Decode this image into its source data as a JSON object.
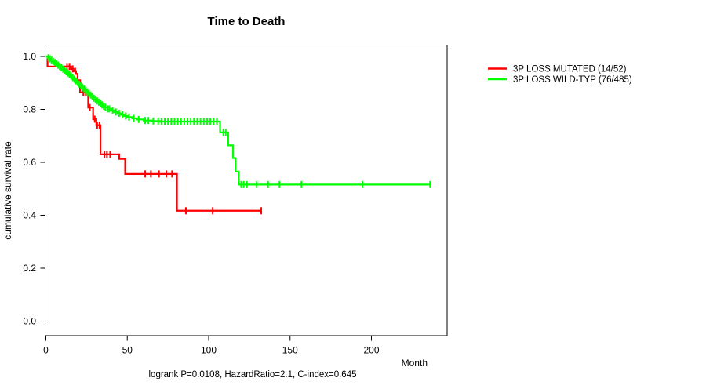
{
  "title": "Time to Death",
  "caption": "logrank P=0.0108, HazardRatio=2.1, C-index=0.645",
  "axes": {
    "x_label": "Month",
    "y_label": "cumulative survival rate",
    "x_ticks": [
      0,
      50,
      100,
      150,
      200
    ],
    "y_ticks": [
      "0.0",
      "0.2",
      "0.4",
      "0.6",
      "0.8",
      "1.0"
    ]
  },
  "chart_data": {
    "type": "line",
    "subtype": "kaplan-meier-step-curves",
    "title": "Time to Death",
    "xlabel": "Month",
    "ylabel": "cumulative survival rate",
    "xlim": [
      0,
      235
    ],
    "ylim": [
      0.0,
      1.0
    ],
    "grid": false,
    "legend_position": "right-outside",
    "annotation": "logrank P=0.0108, HazardRatio=2.1, C-index=0.645",
    "series": [
      {
        "name": "3P LOSS MUTATED (14/52)",
        "color": "#ff0000",
        "events": 14,
        "n": 52,
        "steps": [
          [
            0,
            1.0
          ],
          [
            1,
            0.962
          ],
          [
            15.5,
            0.953
          ],
          [
            17,
            0.944
          ],
          [
            18.5,
            0.934
          ],
          [
            19.5,
            0.91
          ],
          [
            21,
            0.864
          ],
          [
            26,
            0.807
          ],
          [
            29,
            0.763
          ],
          [
            31,
            0.74
          ],
          [
            33.5,
            0.63
          ],
          [
            45,
            0.613
          ],
          [
            48.7,
            0.556
          ],
          [
            80.5,
            0.417
          ],
          [
            132.3,
            0.417
          ]
        ],
        "censor_months": [
          13,
          14.5,
          16.5,
          18,
          23,
          24.5,
          27,
          30,
          31.5,
          33,
          36,
          37.5,
          39.5,
          61,
          64.5,
          69.5,
          74,
          77.5,
          86,
          102.5,
          132.3
        ]
      },
      {
        "name": "3P LOSS WILD-TYP (76/485)",
        "color": "#00ff00",
        "events": 76,
        "n": 485,
        "steps": [
          [
            0,
            1.0
          ],
          [
            1,
            0.995
          ],
          [
            2,
            0.991
          ],
          [
            3,
            0.986
          ],
          [
            4,
            0.981
          ],
          [
            5,
            0.977
          ],
          [
            6,
            0.972
          ],
          [
            7,
            0.967
          ],
          [
            8,
            0.962
          ],
          [
            9,
            0.957
          ],
          [
            10,
            0.952
          ],
          [
            11,
            0.947
          ],
          [
            12,
            0.942
          ],
          [
            13,
            0.937
          ],
          [
            14,
            0.932
          ],
          [
            15,
            0.926
          ],
          [
            16,
            0.92
          ],
          [
            17,
            0.914
          ],
          [
            18,
            0.908
          ],
          [
            19,
            0.902
          ],
          [
            20,
            0.896
          ],
          [
            21,
            0.89
          ],
          [
            22,
            0.884
          ],
          [
            23,
            0.878
          ],
          [
            24,
            0.872
          ],
          [
            25,
            0.866
          ],
          [
            26,
            0.86
          ],
          [
            27,
            0.854
          ],
          [
            28,
            0.848
          ],
          [
            29,
            0.842
          ],
          [
            30,
            0.837
          ],
          [
            31,
            0.832
          ],
          [
            32,
            0.827
          ],
          [
            33,
            0.822
          ],
          [
            34,
            0.817
          ],
          [
            35,
            0.812
          ],
          [
            36,
            0.808
          ],
          [
            38,
            0.802
          ],
          [
            40,
            0.796
          ],
          [
            42,
            0.79
          ],
          [
            44,
            0.785
          ],
          [
            46,
            0.78
          ],
          [
            48,
            0.775
          ],
          [
            50,
            0.771
          ],
          [
            53,
            0.766
          ],
          [
            56,
            0.762
          ],
          [
            60,
            0.758
          ],
          [
            65,
            0.756
          ],
          [
            70,
            0.754
          ],
          [
            107,
            0.713
          ],
          [
            112,
            0.664
          ],
          [
            115,
            0.616
          ],
          [
            116.5,
            0.565
          ],
          [
            118.5,
            0.516
          ],
          [
            236,
            0.516
          ]
        ],
        "censor_months": [
          1.5,
          2.5,
          3.5,
          4.5,
          5.5,
          6.5,
          7.5,
          8.5,
          9.5,
          10.5,
          11.5,
          12.5,
          13.5,
          14.5,
          15.5,
          16.5,
          17.5,
          18.5,
          19.5,
          20.5,
          21.5,
          22.5,
          23.5,
          24.5,
          25.5,
          26.5,
          27.5,
          28.5,
          29.5,
          30.5,
          31.5,
          32.5,
          33.5,
          34.5,
          35.5,
          36.5,
          38,
          39,
          41,
          43,
          45,
          47,
          49,
          51,
          54,
          57,
          61,
          63,
          66,
          69,
          71,
          73,
          75,
          77,
          79,
          81,
          83,
          85,
          87,
          89,
          91,
          93,
          95,
          97,
          99,
          101,
          103,
          105,
          109,
          110.5,
          120,
          121.5,
          123.5,
          129.5,
          136.5,
          143.5,
          157,
          194.5,
          236
        ]
      }
    ]
  }
}
